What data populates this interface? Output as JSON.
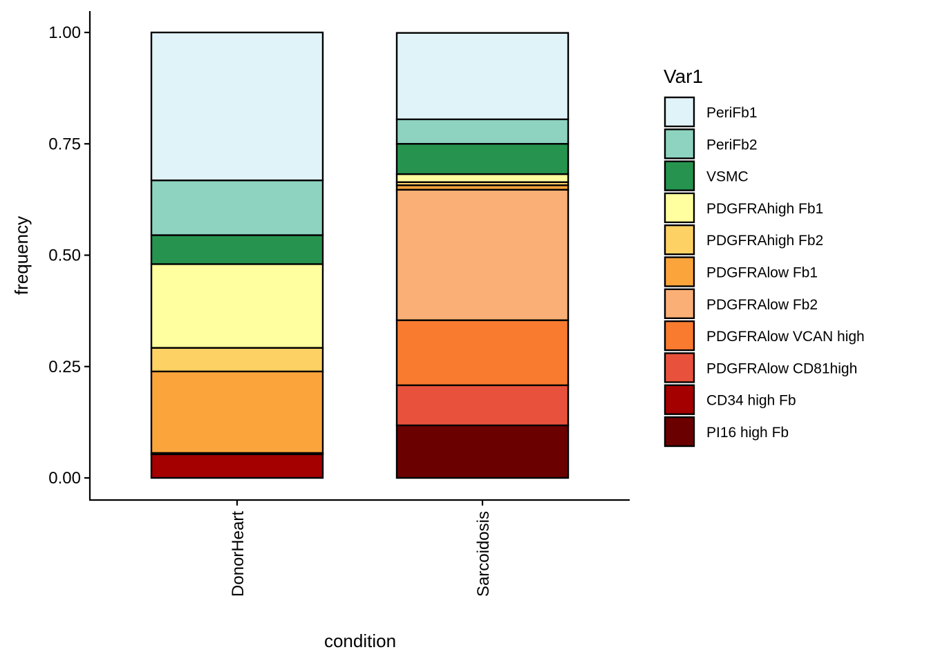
{
  "chart_data": {
    "type": "bar",
    "stacked": true,
    "xlabel": "condition",
    "ylabel": "frequency",
    "ylim": [
      0,
      1.05
    ],
    "yticks": [
      0,
      0.25,
      0.5,
      0.75,
      1.0
    ],
    "ytick_labels": [
      "0.00",
      "0.25",
      "0.50",
      "0.75",
      "1.00"
    ],
    "categories": [
      "DonorHeart",
      "Sarcoidosis"
    ],
    "legend": {
      "title": "Var1",
      "placement": "right"
    },
    "grid": false,
    "series": [
      {
        "name": "PeriFb1",
        "color": "#E0F3F8",
        "values": [
          0.332,
          0.194
        ]
      },
      {
        "name": "PeriFb2",
        "color": "#8DD3C0",
        "values": [
          0.123,
          0.055
        ]
      },
      {
        "name": "VSMC",
        "color": "#26944F",
        "values": [
          0.065,
          0.068
        ]
      },
      {
        "name": "PDGFRAhigh Fb1",
        "color": "#FFFF9F",
        "values": [
          0.188,
          0.018
        ]
      },
      {
        "name": "PDGFRAhigh Fb2",
        "color": "#FED164",
        "values": [
          0.053,
          0.007
        ]
      },
      {
        "name": "PDGFRAlow Fb1",
        "color": "#FCA43C",
        "values": [
          0.183,
          0.01
        ]
      },
      {
        "name": "PDGFRAlow Fb2",
        "color": "#FAAF76",
        "values": [
          0.0,
          0.293
        ]
      },
      {
        "name": "PDGFRAlow VCAN high",
        "color": "#F97B30",
        "values": [
          0.0,
          0.146
        ]
      },
      {
        "name": "PDGFRAlow CD81high",
        "color": "#E8523C",
        "values": [
          0.003,
          0.09
        ]
      },
      {
        "name": "CD34 high Fb",
        "color": "#A40000",
        "values": [
          0.053,
          0.0
        ]
      },
      {
        "name": "PI16 high Fb",
        "color": "#6B0000",
        "values": [
          0.0,
          0.118
        ]
      }
    ]
  }
}
